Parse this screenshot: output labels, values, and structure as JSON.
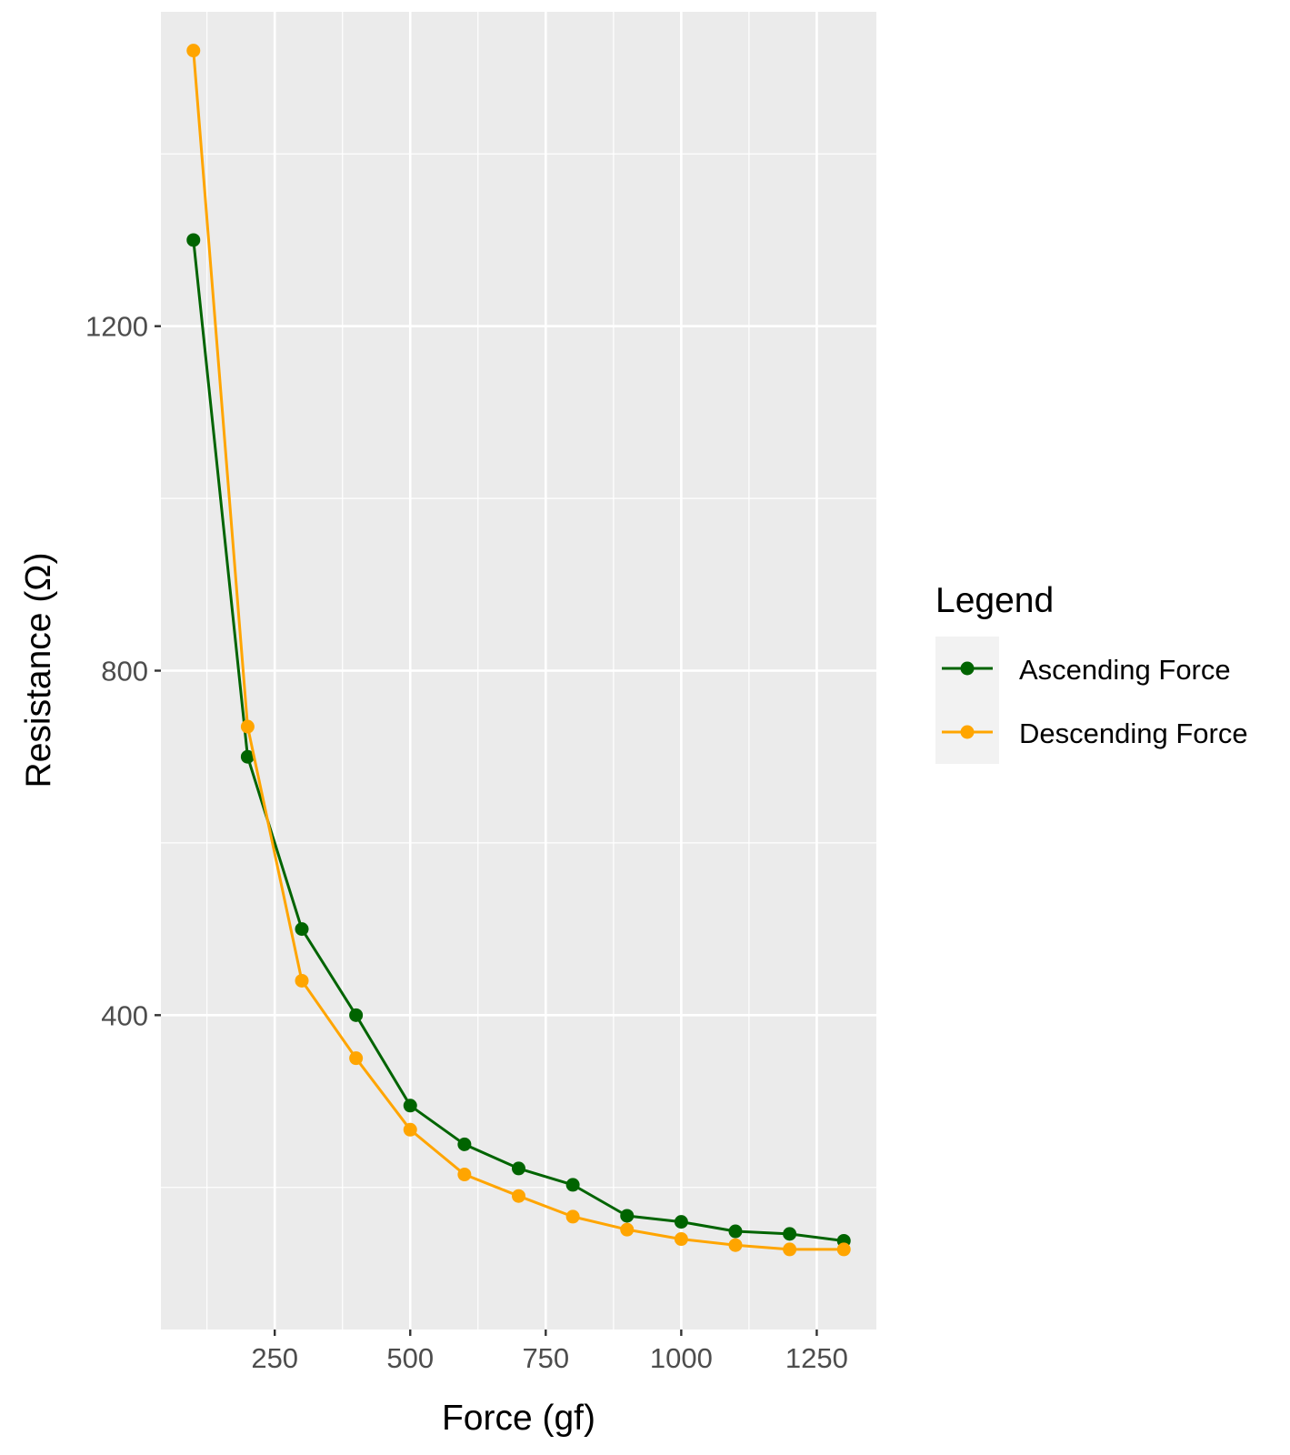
{
  "chart_data": {
    "type": "line",
    "title": "",
    "xlabel": "Force (gf)",
    "ylabel": "Resistance (Ω)",
    "xlim": [
      40,
      1360
    ],
    "ylim": [
      35,
      1565
    ],
    "x_ticks": [
      250,
      500,
      750,
      1000,
      1250
    ],
    "x_tick_labels": [
      "250",
      "500",
      "750",
      "1000",
      "1250"
    ],
    "y_ticks": [
      400,
      800,
      1200
    ],
    "y_tick_labels": [
      "400",
      "800",
      "1200"
    ],
    "grid": true,
    "background": "#ebebeb",
    "legend": {
      "title": "Legend",
      "position": "right"
    },
    "x": [
      100,
      200,
      300,
      400,
      500,
      600,
      700,
      800,
      900,
      1000,
      1100,
      1200,
      1300
    ],
    "series": [
      {
        "name": "Ascending Force",
        "color": "#006400",
        "values": [
          1300,
          700,
          500,
          400,
          295,
          250,
          222,
          203,
          167,
          160,
          149,
          146,
          138
        ]
      },
      {
        "name": "Descending Force",
        "color": "#ffa500",
        "values": [
          1520,
          735,
          440,
          350,
          267,
          215,
          190,
          166,
          151,
          140,
          133,
          128,
          128
        ]
      }
    ]
  }
}
